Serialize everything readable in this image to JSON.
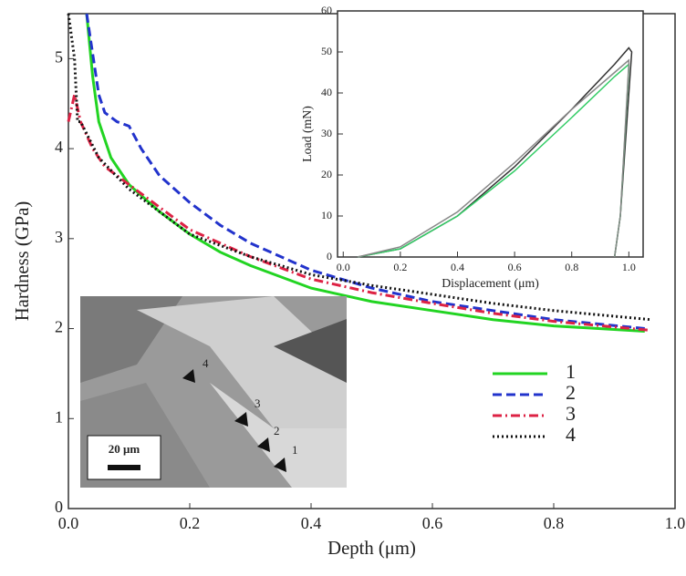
{
  "chart_data": [
    {
      "type": "line",
      "x_label": "Depth (μm)",
      "y_label": "Hardness (GPa)",
      "xlim": [
        0,
        1.0
      ],
      "ylim": [
        0,
        5.5
      ],
      "xticks": [
        {
          "value": 0,
          "label": "0.0"
        },
        0.2,
        0.4,
        0.6,
        0.8,
        {
          "value": 1,
          "label": "1.0"
        }
      ],
      "yticks": [
        0,
        1,
        2,
        3,
        4,
        5
      ],
      "legend": "right",
      "series": [
        {
          "name": "1",
          "color": "#22d422",
          "dash": "solid",
          "x": [
            0.03,
            0.04,
            0.05,
            0.07,
            0.1,
            0.15,
            0.2,
            0.25,
            0.3,
            0.4,
            0.5,
            0.6,
            0.7,
            0.8,
            0.95
          ],
          "values": [
            5.5,
            4.8,
            4.3,
            3.9,
            3.6,
            3.3,
            3.05,
            2.85,
            2.7,
            2.45,
            2.3,
            2.2,
            2.1,
            2.03,
            1.97
          ]
        },
        {
          "name": "2",
          "color": "#2233cc",
          "dash": "dashed",
          "x": [
            0.03,
            0.05,
            0.06,
            0.08,
            0.1,
            0.12,
            0.15,
            0.2,
            0.25,
            0.3,
            0.4,
            0.5,
            0.6,
            0.7,
            0.8,
            0.95
          ],
          "values": [
            5.5,
            4.6,
            4.4,
            4.3,
            4.25,
            4.0,
            3.7,
            3.4,
            3.15,
            2.95,
            2.65,
            2.45,
            2.3,
            2.2,
            2.1,
            2.0
          ]
        },
        {
          "name": "3",
          "color": "#dd2244",
          "dash": "dashdot",
          "x": [
            0.0,
            0.01,
            0.02,
            0.04,
            0.06,
            0.1,
            0.15,
            0.2,
            0.3,
            0.4,
            0.5,
            0.6,
            0.7,
            0.8,
            0.96
          ],
          "values": [
            4.3,
            4.6,
            4.3,
            4.0,
            3.8,
            3.6,
            3.35,
            3.1,
            2.8,
            2.55,
            2.4,
            2.28,
            2.17,
            2.08,
            1.98
          ]
        },
        {
          "name": "4",
          "color": "#111111",
          "dash": "dotted",
          "x": [
            0.0,
            0.01,
            0.015,
            0.02,
            0.05,
            0.1,
            0.15,
            0.2,
            0.3,
            0.4,
            0.5,
            0.6,
            0.7,
            0.8,
            0.96
          ],
          "values": [
            5.5,
            5.0,
            4.3,
            4.3,
            3.9,
            3.55,
            3.3,
            3.05,
            2.8,
            2.6,
            2.48,
            2.38,
            2.28,
            2.2,
            2.1
          ]
        }
      ],
      "micrograph": {
        "labels": [
          "4",
          "3",
          "2",
          "1"
        ],
        "scale_bar": "20 μm"
      }
    },
    {
      "type": "line",
      "x_label": "Displacement (μm)",
      "y_label": "Load (mN)",
      "xlim": [
        -0.02,
        1.05
      ],
      "ylim": [
        0,
        60
      ],
      "xticks": [
        {
          "value": 0,
          "label": "0.0"
        },
        0.2,
        0.4,
        0.6,
        0.8,
        {
          "value": 1,
          "label": "1.0"
        }
      ],
      "yticks": [
        0,
        10,
        20,
        30,
        40,
        50,
        60
      ],
      "series": [
        {
          "color": "#333333",
          "dash": "solid",
          "x": [
            0.05,
            0.2,
            0.4,
            0.6,
            0.8,
            0.95,
            1.0,
            1.01,
            0.97,
            0.95
          ],
          "values": [
            0,
            2,
            10,
            22,
            36,
            47,
            51,
            50,
            10,
            0
          ]
        },
        {
          "color": "#33cc66",
          "dash": "solid",
          "x": [
            0.05,
            0.2,
            0.4,
            0.6,
            0.8,
            0.95,
            1.0,
            1.0,
            0.97,
            0.95
          ],
          "values": [
            0,
            2,
            10,
            21,
            34,
            44,
            47,
            46,
            10,
            0
          ]
        },
        {
          "color": "#888888",
          "dash": "solid",
          "x": [
            0.05,
            0.2,
            0.4,
            0.6,
            0.8,
            0.95,
            1.0,
            1.0,
            0.97,
            0.95
          ],
          "values": [
            0,
            2.5,
            11,
            23,
            36,
            45,
            48,
            47,
            10,
            0
          ]
        }
      ]
    }
  ]
}
